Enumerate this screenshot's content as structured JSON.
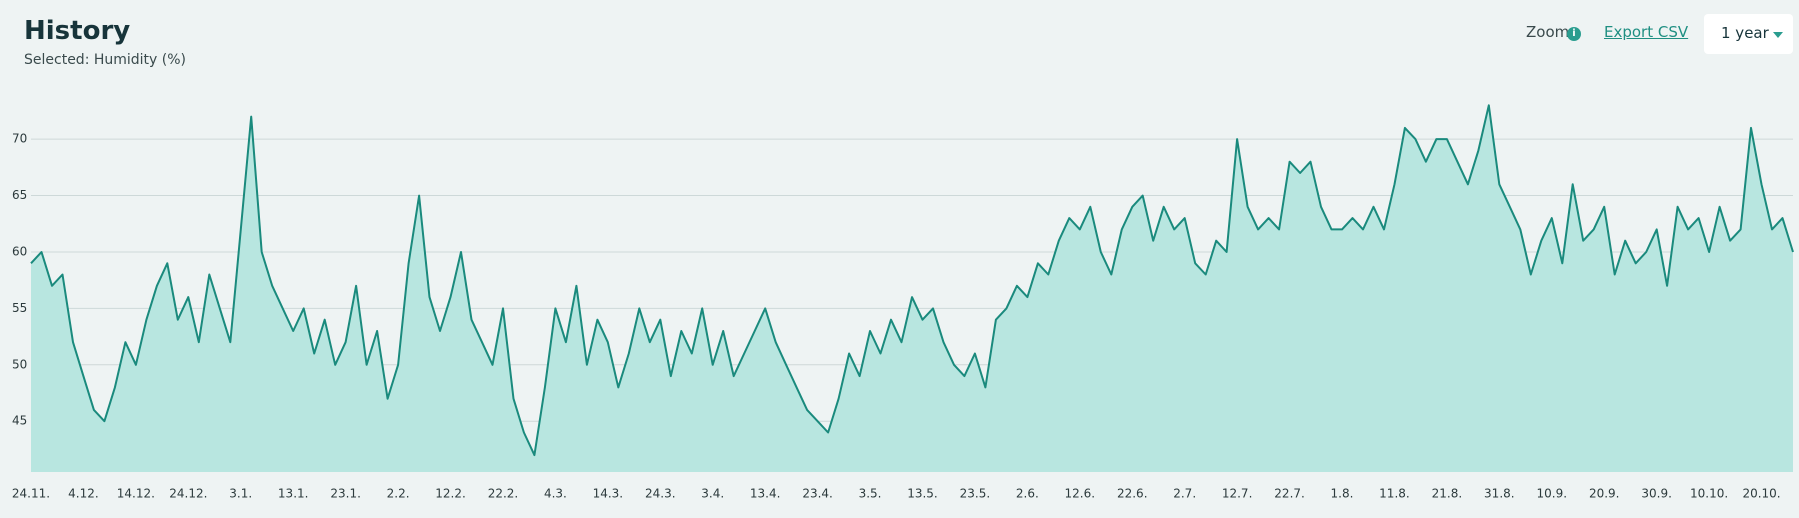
{
  "chart_data": {
    "type": "area",
    "title": "History",
    "subtitle": "Selected: Humidity (%)",
    "categories": [
      "24.11.",
      null,
      null,
      null,
      null,
      "4.12.",
      null,
      null,
      null,
      null,
      "14.12.",
      null,
      null,
      null,
      null,
      "24.12.",
      null,
      null,
      null,
      null,
      "3.1.",
      null,
      null,
      null,
      null,
      "13.1.",
      null,
      null,
      null,
      null,
      "23.1.",
      null,
      null,
      null,
      null,
      "2.2.",
      null,
      null,
      null,
      null,
      "12.2.",
      null,
      null,
      null,
      null,
      "22.2.",
      null,
      null,
      null,
      null,
      "4.3.",
      null,
      null,
      null,
      null,
      "14.3.",
      null,
      null,
      null,
      null,
      "24.3.",
      null,
      null,
      null,
      null,
      "3.4.",
      null,
      null,
      null,
      null,
      "13.4.",
      null,
      null,
      null,
      null,
      "23.4.",
      null,
      null,
      null,
      null,
      "3.5.",
      null,
      null,
      null,
      null,
      "13.5.",
      null,
      null,
      null,
      null,
      "23.5.",
      null,
      null,
      null,
      null,
      "2.6.",
      null,
      null,
      null,
      null,
      "12.6.",
      null,
      null,
      null,
      null,
      "22.6.",
      null,
      null,
      null,
      null,
      "2.7.",
      null,
      null,
      null,
      null,
      "12.7.",
      null,
      null,
      null,
      null,
      "22.7.",
      null,
      null,
      null,
      null,
      "1.8.",
      null,
      null,
      null,
      null,
      "11.8.",
      null,
      null,
      null,
      null,
      "21.8.",
      null,
      null,
      null,
      null,
      "31.8.",
      null,
      null,
      null,
      null,
      "10.9.",
      null,
      null,
      null,
      null,
      "20.9.",
      null,
      null,
      null,
      null,
      "30.9.",
      null,
      null,
      null,
      null,
      "10.10.",
      null,
      null,
      null,
      null,
      "20.10.",
      null,
      null,
      null
    ],
    "values": [
      59,
      60,
      57,
      58,
      52,
      49,
      46,
      45,
      48,
      52,
      50,
      54,
      57,
      59,
      54,
      56,
      52,
      58,
      55,
      52,
      62,
      72,
      60,
      57,
      55,
      53,
      55,
      51,
      54,
      50,
      52,
      57,
      50,
      53,
      47,
      50,
      59,
      65,
      56,
      53,
      56,
      60,
      54,
      52,
      50,
      55,
      47,
      44,
      42,
      48,
      55,
      52,
      57,
      50,
      54,
      52,
      48,
      51,
      55,
      52,
      54,
      49,
      53,
      51,
      55,
      50,
      53,
      49,
      51,
      53,
      55,
      52,
      50,
      48,
      46,
      45,
      44,
      47,
      51,
      49,
      53,
      51,
      54,
      52,
      56,
      54,
      55,
      52,
      50,
      49,
      51,
      48,
      54,
      55,
      57,
      56,
      59,
      58,
      61,
      63,
      62,
      64,
      60,
      58,
      62,
      64,
      65,
      61,
      64,
      62,
      63,
      59,
      58,
      61,
      60,
      70,
      64,
      62,
      63,
      62,
      68,
      67,
      68,
      64,
      62,
      62,
      63,
      62,
      64,
      62,
      66,
      71,
      70,
      68,
      70,
      70,
      68,
      66,
      69,
      73,
      66,
      64,
      62,
      58,
      61,
      63,
      59,
      66,
      61,
      62,
      64,
      58,
      61,
      59,
      60,
      62,
      57,
      64,
      62,
      63,
      60,
      64,
      61,
      62,
      71,
      66,
      62,
      63,
      60
    ],
    "color": "#1a8a7d",
    "fill": "#b8e6e0",
    "ylim": [
      40.5,
      74
    ],
    "yticks": [
      45,
      50,
      55,
      60,
      65,
      70
    ],
    "grid": true
  },
  "controls": {
    "zoom": "Zoom",
    "export": "Export CSV",
    "range": "1 year"
  }
}
